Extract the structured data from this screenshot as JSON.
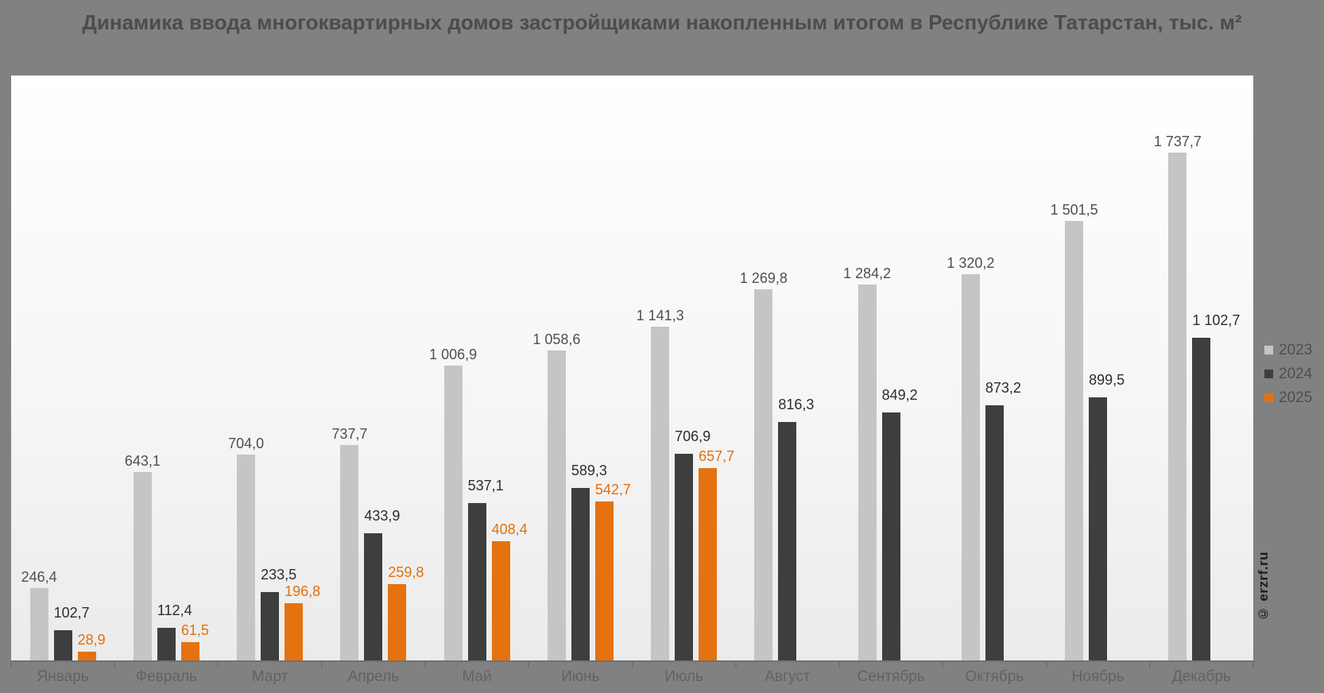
{
  "title": "Динамика ввода многоквартирных домов застройщиками накопленным итогом в Республике Татарстан, тыс. м²",
  "watermark": "© erzrf.ru",
  "colors": {
    "page_background": "#818181",
    "plot_background_top": "#ffffff",
    "plot_background_bottom": "#ebebeb",
    "axis": "#717171",
    "title_text": "#4c4c4c",
    "month_label_text": "#626262",
    "legend_text": "#4f4f4f"
  },
  "legend": {
    "position": "right",
    "items": [
      {
        "label": "2023",
        "color": "#c5c5c5"
      },
      {
        "label": "2024",
        "color": "#3e3e3e"
      },
      {
        "label": "2025",
        "color": "#e4720f"
      }
    ]
  },
  "chart_data": {
    "type": "bar",
    "title": "Динамика ввода многоквартирных домов застройщиками накопленным итогом в Республике Татарстан, тыс. м²",
    "xlabel": "",
    "ylabel": "тыс. м²",
    "ylim": [
      0,
      2000
    ],
    "grid": false,
    "legend_position": "right",
    "value_label_format": "ru-RU (comma decimal, thin-space thousands)",
    "categories": [
      "Январь",
      "Февраль",
      "Март",
      "Апрель",
      "Май",
      "Июнь",
      "Июль",
      "Август",
      "Сентябрь",
      "Октябрь",
      "Ноябрь",
      "Декабрь"
    ],
    "series": [
      {
        "name": "2023",
        "color": "#c5c5c5",
        "label_color": "#4f4f4f",
        "values": [
          246.4,
          643.1,
          704.0,
          737.7,
          1006.9,
          1058.6,
          1141.3,
          1269.8,
          1284.2,
          1320.2,
          1501.5,
          1737.7
        ],
        "labels": [
          "246,4",
          "643,1",
          "704,0",
          "737,7",
          "1 006,9",
          "1 058,6",
          "1 141,3",
          "1 269,8",
          "1 284,2",
          "1 320,2",
          "1 501,5",
          "1 737,7"
        ]
      },
      {
        "name": "2024",
        "color": "#3e3e3e",
        "label_color": "#2d2d2d",
        "values": [
          102.7,
          112.4,
          233.5,
          433.9,
          537.1,
          589.3,
          706.9,
          816.3,
          849.2,
          873.2,
          899.5,
          1102.7
        ],
        "labels": [
          "102,7",
          "112,4",
          "233,5",
          "433,9",
          "537,1",
          "589,3",
          "706,9",
          "816,3",
          "849,2",
          "873,2",
          "899,5",
          "1 102,7"
        ]
      },
      {
        "name": "2025",
        "color": "#e4720f",
        "label_color": "#e2700c",
        "values": [
          28.9,
          61.5,
          196.8,
          259.8,
          408.4,
          542.7,
          657.7,
          null,
          null,
          null,
          null,
          null
        ],
        "labels": [
          "28,9",
          "61,5",
          "196,8",
          "259,8",
          "408,4",
          "542,7",
          "657,7",
          null,
          null,
          null,
          null,
          null
        ]
      }
    ]
  }
}
